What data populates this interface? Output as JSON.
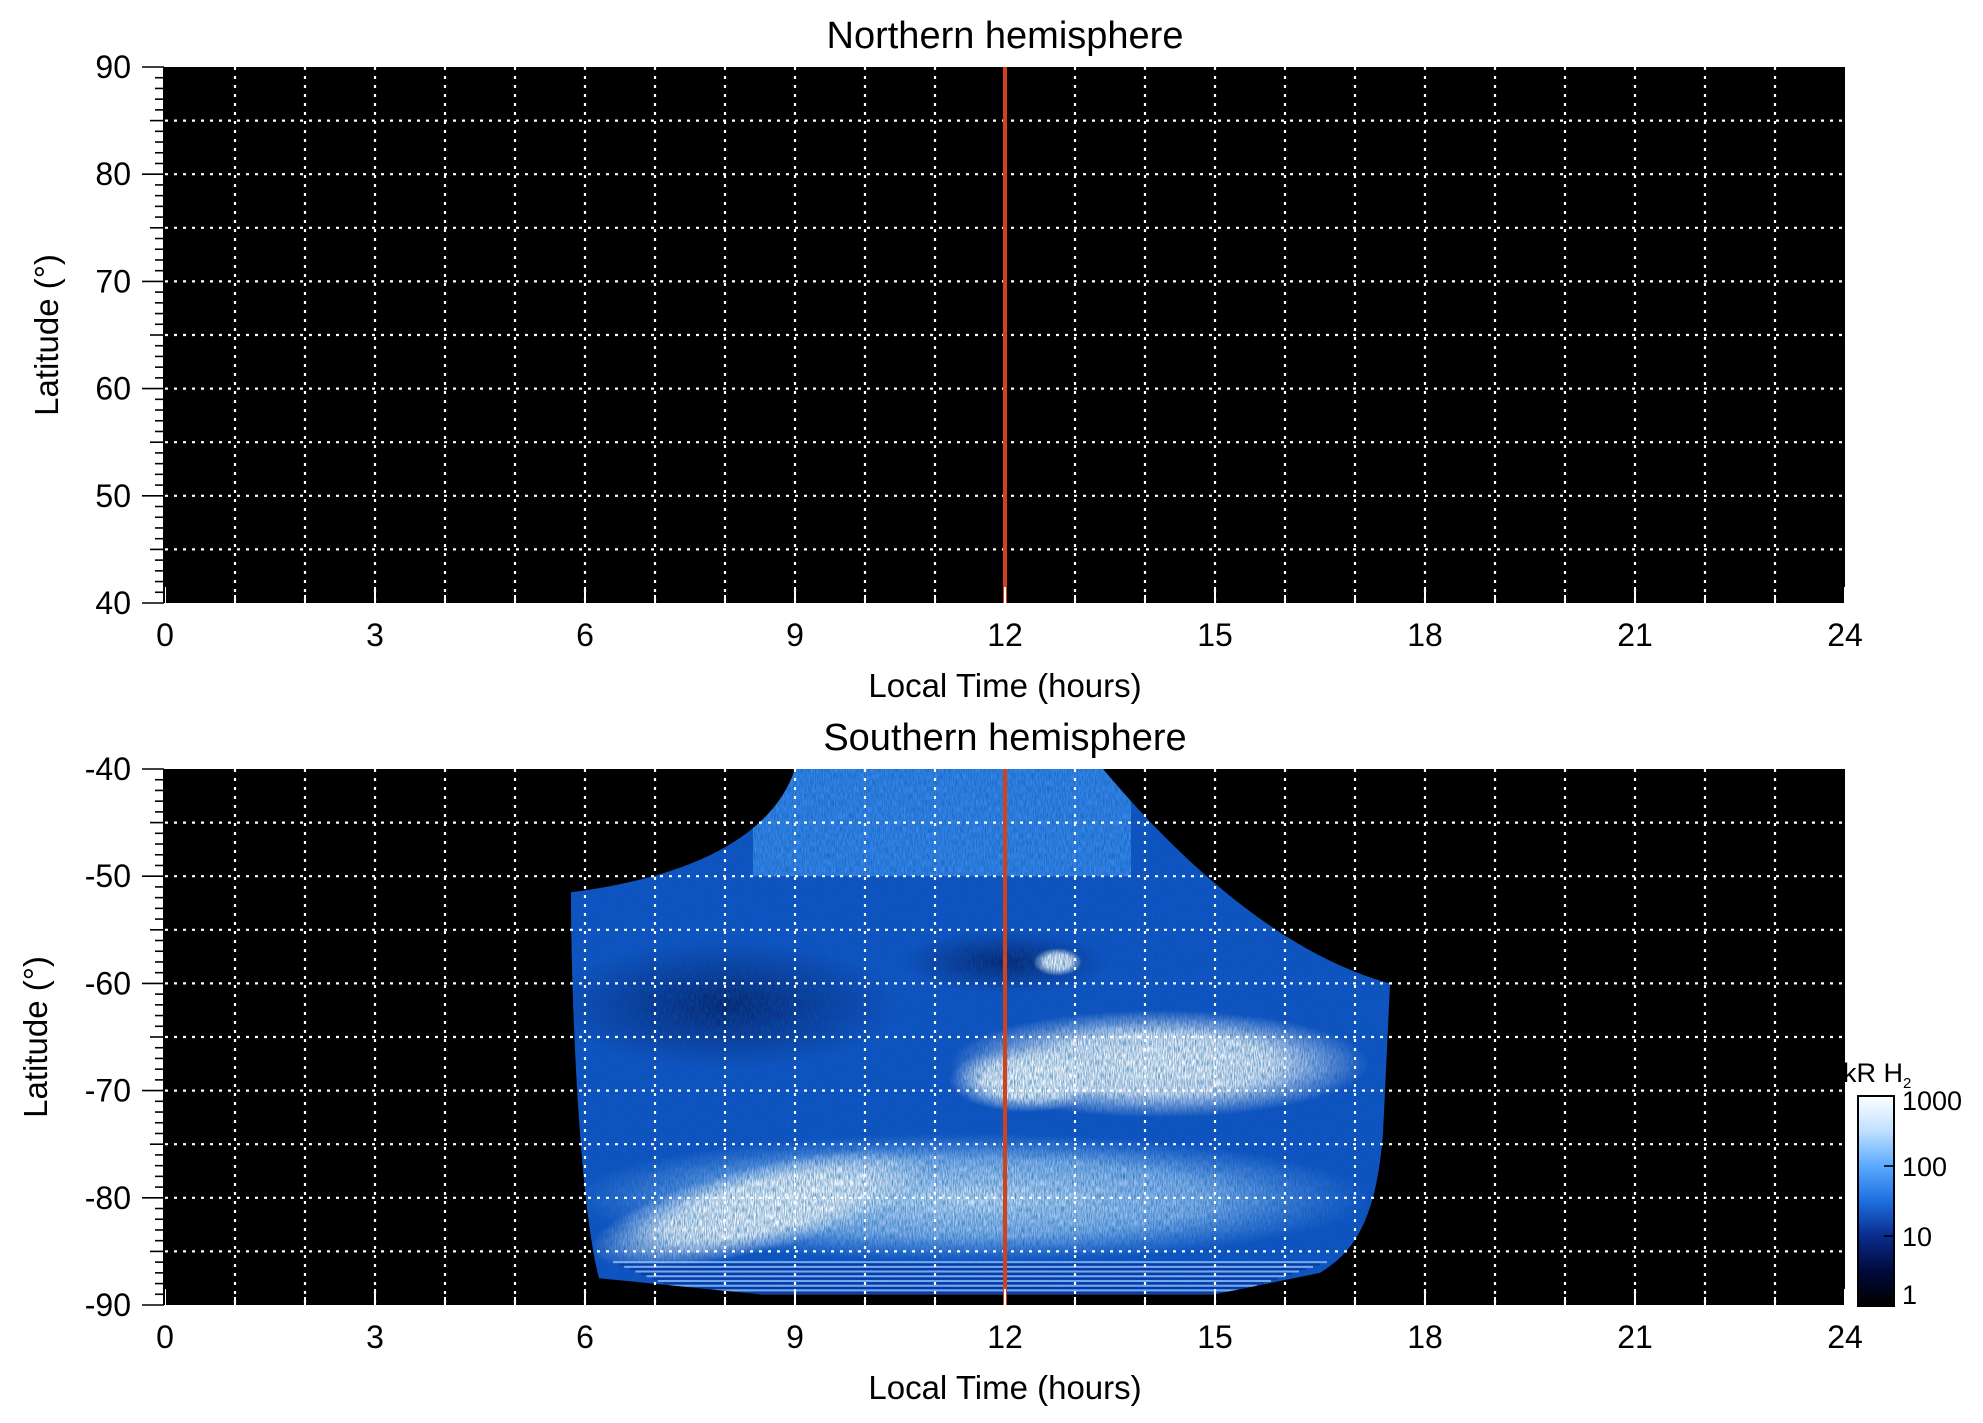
{
  "chart_data": [
    {
      "type": "heatmap",
      "title": "Northern hemisphere",
      "xlabel": "Local Time (hours)",
      "ylabel": "Latitude (°)",
      "xlim": [
        0,
        24
      ],
      "ylim": [
        40,
        90
      ],
      "xticks": [
        "0",
        "3",
        "6",
        "9",
        "12",
        "15",
        "18",
        "21",
        "24"
      ],
      "yticks": [
        "40",
        "50",
        "60",
        "70",
        "80",
        "90"
      ],
      "grid": true,
      "noon_line": {
        "x": 12,
        "color": "#d0421b"
      },
      "emission": "none"
    },
    {
      "type": "heatmap",
      "title": "Southern hemisphere",
      "xlabel": "Local Time (hours)",
      "ylabel": "Latitude (°)",
      "xlim": [
        0,
        24
      ],
      "ylim": [
        -90,
        -40
      ],
      "xticks": [
        "0",
        "3",
        "6",
        "9",
        "12",
        "15",
        "18",
        "21",
        "24"
      ],
      "yticks": [
        "-90",
        "-80",
        "-70",
        "-60",
        "-50",
        "-40"
      ],
      "grid": true,
      "noon_line": {
        "x": 12,
        "color": "#d0421b"
      },
      "coverage_lt": [
        5.8,
        17.5
      ],
      "coverage_lat": [
        -89,
        -40
      ],
      "bright_features": [
        {
          "description_lt": [
            11.5,
            17.0
          ],
          "lat": [
            -72,
            -62
          ]
        },
        {
          "description_lt": [
            6.0,
            11.0
          ],
          "lat": [
            -86,
            -76
          ]
        },
        {
          "description_lt": [
            12.5,
            13.0
          ],
          "lat": [
            -59,
            -57
          ]
        }
      ],
      "colorbar": {
        "label_main": "kR H",
        "label_sub": "2",
        "scale": "log",
        "range": [
          1,
          1000
        ],
        "ticks": [
          "1",
          "10",
          "100",
          "1000"
        ],
        "colors": [
          "#000000",
          "#000a3c",
          "#0a2c8c",
          "#1e6fe0",
          "#5aaaff",
          "#bfe0ff",
          "#ffffff"
        ]
      }
    }
  ],
  "colors": {
    "background": "#000000",
    "grid": "#ffffff",
    "noon_line": "#d0421b"
  }
}
